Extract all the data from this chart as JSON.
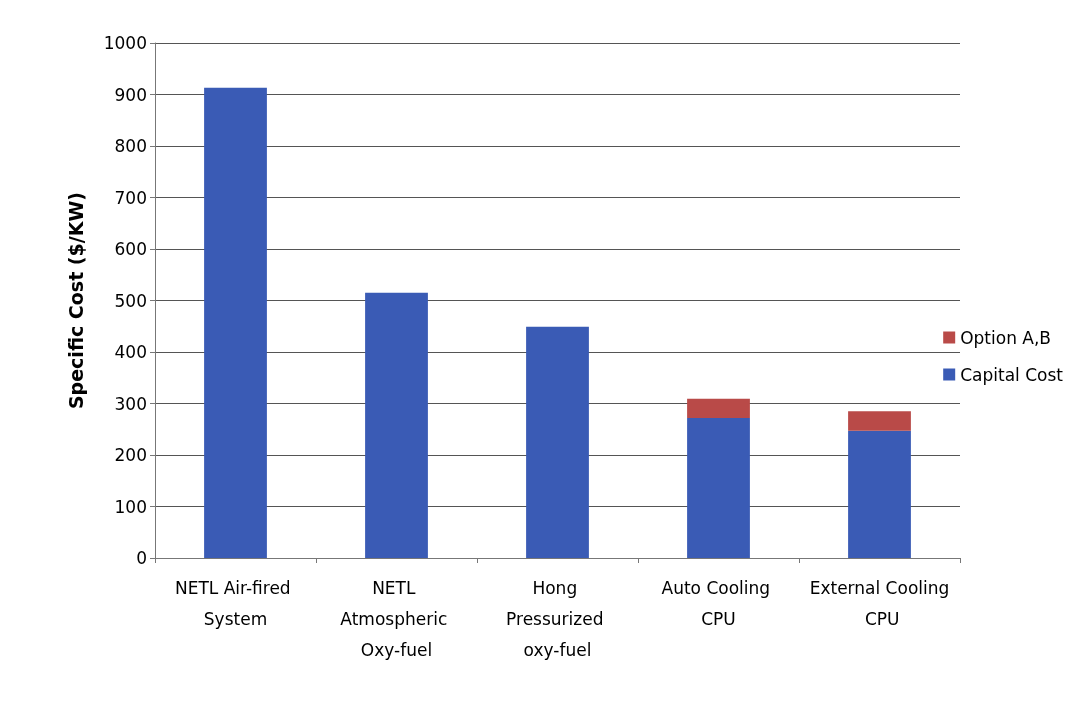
{
  "chart_data": {
    "type": "bar",
    "ylabel": "Specific Cost ($/KW)",
    "categories": [
      "NETL Air-fired System",
      "NETL Atmospheric Oxy-fuel",
      "Hong Pressurized oxy-fuel",
      "Auto Cooling CPU",
      "External Cooling CPU"
    ],
    "series": [
      {
        "name": "Capital Cost",
        "color": "#3a5bb5",
        "values": [
          913,
          515,
          449,
          272,
          247
        ]
      },
      {
        "name": "Option A,B",
        "color": "#b94a48",
        "values": [
          null,
          null,
          null,
          37,
          38
        ]
      }
    ],
    "stacked": true,
    "ylim": [
      0,
      1000
    ],
    "yticks": [
      0,
      100,
      200,
      300,
      400,
      500,
      600,
      700,
      800,
      900,
      1000
    ],
    "grid": "y",
    "legend": "right"
  }
}
